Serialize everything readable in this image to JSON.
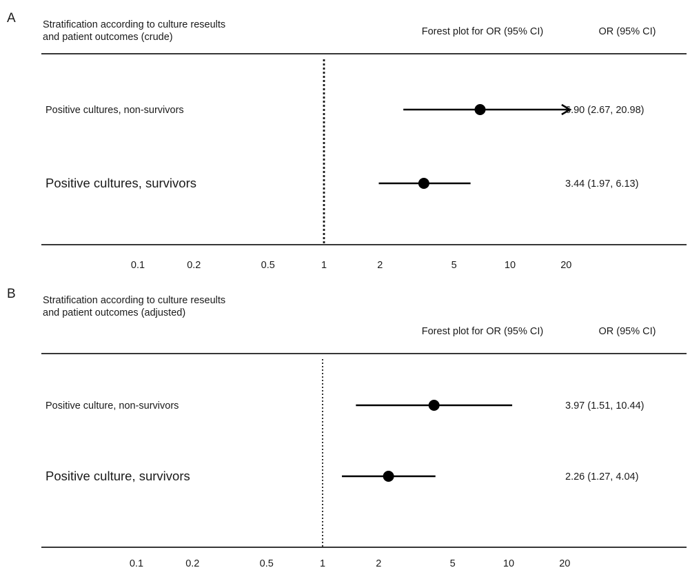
{
  "chart_data": [
    {
      "type": "forest",
      "panel_label": "A",
      "title_lines": [
        "Stratification according to culture reseults",
        "and patient outcomes (crude)"
      ],
      "plot_header": "Forest plot for OR (95% CI)",
      "value_header": "OR (95% CI)",
      "x_scale": "log",
      "reference_line": 1,
      "x_ticks": [
        0.1,
        0.2,
        0.5,
        1,
        2,
        5,
        10,
        20
      ],
      "x_tick_labels": [
        "0.1",
        "0.2",
        "0.5",
        "1",
        "2",
        "5",
        "10",
        "20"
      ],
      "rows": [
        {
          "label": "Positive cultures, non-survivors",
          "or": 6.9,
          "ci_low": 2.67,
          "ci_high": 20.98,
          "ci_arrow_right": true,
          "text": "6.90 (2.67, 20.98)",
          "label_size": "small"
        },
        {
          "label": "Positive cultures, survivors",
          "or": 3.44,
          "ci_low": 1.97,
          "ci_high": 6.13,
          "ci_arrow_right": false,
          "text": "3.44 (1.97, 6.13)",
          "label_size": "large"
        }
      ]
    },
    {
      "type": "forest",
      "panel_label": "B",
      "title_lines": [
        "Stratification according to culture reseults",
        "and patient outcomes (adjusted)"
      ],
      "plot_header": "Forest plot for OR (95% CI)",
      "value_header": "OR (95% CI)",
      "x_scale": "log",
      "reference_line": 1,
      "x_ticks": [
        0.1,
        0.2,
        0.5,
        1,
        2,
        5,
        10,
        20
      ],
      "x_tick_labels": [
        "0.1",
        "0.2",
        "0.5",
        "1",
        "2",
        "5",
        "10",
        "20"
      ],
      "rows": [
        {
          "label": "Positive culture, non-survivors",
          "or": 3.97,
          "ci_low": 1.51,
          "ci_high": 10.44,
          "ci_arrow_right": false,
          "text": "3.97 (1.51, 10.44)",
          "label_size": "small"
        },
        {
          "label": "Positive culture, survivors",
          "or": 2.26,
          "ci_low": 1.27,
          "ci_high": 4.04,
          "ci_arrow_right": false,
          "text": "2.26 (1.27, 4.04)",
          "label_size": "large"
        }
      ]
    }
  ]
}
